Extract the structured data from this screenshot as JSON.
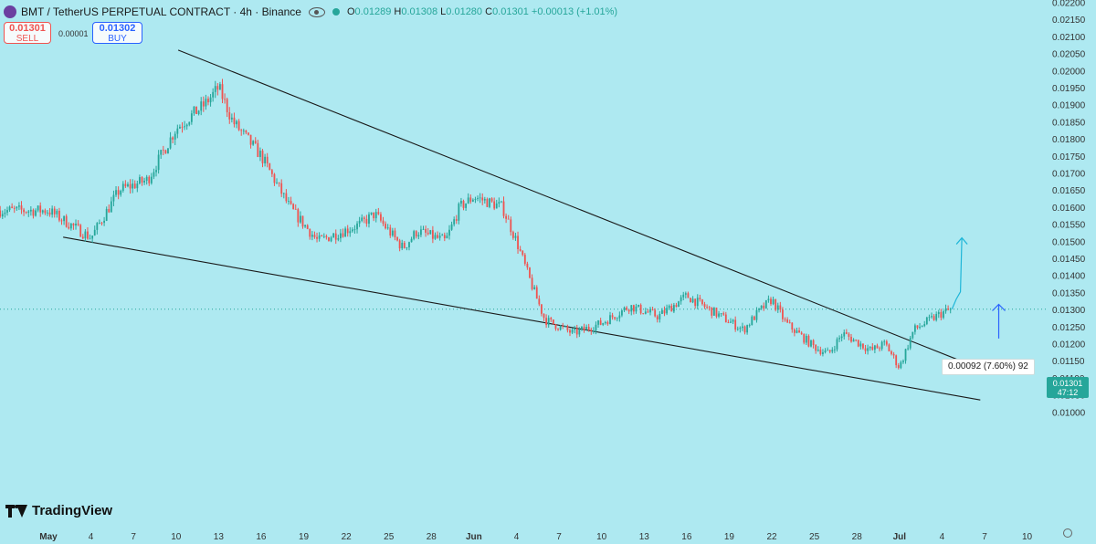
{
  "header": {
    "symbol_title": "BMT / TetherUS PERPETUAL CONTRACT · 4h · Binance",
    "ohlc": {
      "o_label": "O",
      "o_value": "0.01289",
      "h_label": "H",
      "h_value": "0.01308",
      "l_label": "L",
      "l_value": "0.01280",
      "c_label": "C",
      "c_value": "0.01301",
      "change": "+0.00013 (+1.01%)"
    }
  },
  "trade": {
    "sell_price": "0.01301",
    "sell_label": "SELL",
    "spread": "0.00001",
    "buy_price": "0.01302",
    "buy_label": "BUY"
  },
  "branding": {
    "name": "TradingView"
  },
  "last_price": {
    "value": "0.01301",
    "countdown": "47:12"
  },
  "measure_label": "0.00092 (7.60%) 92",
  "colors": {
    "background": "#aee9f1",
    "up": "#26a69a",
    "down": "#ef5350",
    "projection": "#1fb6d8",
    "arrow": "#2962ff"
  },
  "chart_data": {
    "type": "candlestick",
    "x_tick_labels": [
      "May",
      "4",
      "7",
      "10",
      "13",
      "16",
      "19",
      "22",
      "25",
      "28",
      "Jun",
      "4",
      "7",
      "10",
      "13",
      "16",
      "19",
      "22",
      "25",
      "28",
      "Jul",
      "4",
      "7",
      "10"
    ],
    "y_tick_labels": [
      "0.02200",
      "0.02150",
      "0.02100",
      "0.02050",
      "0.02000",
      "0.01950",
      "0.01900",
      "0.01850",
      "0.01800",
      "0.01750",
      "0.01700",
      "0.01650",
      "0.01600",
      "0.01550",
      "0.01500",
      "0.01450",
      "0.01400",
      "0.01350",
      "0.01300",
      "0.01250",
      "0.01200",
      "0.01150",
      "0.01100",
      "0.01050",
      "0.01000"
    ],
    "ylim": [
      0.00985,
      0.0221
    ],
    "price_path": [
      {
        "day": 0,
        "price": 0.0159
      },
      {
        "day": 3,
        "price": 0.0151
      },
      {
        "day": 5,
        "price": 0.0165
      },
      {
        "day": 7,
        "price": 0.0168
      },
      {
        "day": 9,
        "price": 0.0183
      },
      {
        "day": 11,
        "price": 0.019
      },
      {
        "day": 12,
        "price": 0.0195
      },
      {
        "day": 13,
        "price": 0.0185
      },
      {
        "day": 15,
        "price": 0.0175
      },
      {
        "day": 17,
        "price": 0.016
      },
      {
        "day": 19,
        "price": 0.015
      },
      {
        "day": 22,
        "price": 0.0155
      },
      {
        "day": 23,
        "price": 0.0158
      },
      {
        "day": 25,
        "price": 0.0148
      },
      {
        "day": 26,
        "price": 0.0153
      },
      {
        "day": 28,
        "price": 0.015
      },
      {
        "day": 29,
        "price": 0.016
      },
      {
        "day": 30,
        "price": 0.0163
      },
      {
        "day": 32,
        "price": 0.016
      },
      {
        "day": 33,
        "price": 0.015
      },
      {
        "day": 34,
        "price": 0.0138
      },
      {
        "day": 35,
        "price": 0.0127
      },
      {
        "day": 37,
        "price": 0.0123
      },
      {
        "day": 39,
        "price": 0.0126
      },
      {
        "day": 41,
        "price": 0.0131
      },
      {
        "day": 43,
        "price": 0.0128
      },
      {
        "day": 45,
        "price": 0.0134
      },
      {
        "day": 47,
        "price": 0.0129
      },
      {
        "day": 49,
        "price": 0.0124
      },
      {
        "day": 50,
        "price": 0.0129
      },
      {
        "day": 51,
        "price": 0.0133
      },
      {
        "day": 52,
        "price": 0.0126
      },
      {
        "day": 54,
        "price": 0.0119
      },
      {
        "day": 55,
        "price": 0.0117
      },
      {
        "day": 56,
        "price": 0.0123
      },
      {
        "day": 58,
        "price": 0.0118
      },
      {
        "day": 59,
        "price": 0.012
      },
      {
        "day": 60,
        "price": 0.0113
      },
      {
        "day": 61,
        "price": 0.0124
      },
      {
        "day": 63,
        "price": 0.0129
      },
      {
        "day": 63.7,
        "price": 0.01301
      }
    ],
    "trendlines": [
      {
        "name": "upper",
        "points": [
          {
            "day": 9.15,
            "price": 0.0206
          },
          {
            "day": 65.7,
            "price": 0.01127
          }
        ]
      },
      {
        "name": "lower",
        "points": [
          {
            "day": 1.04,
            "price": 0.01512
          },
          {
            "day": 65.7,
            "price": 0.01035
          }
        ]
      }
    ],
    "projection": [
      {
        "day": 63.7,
        "price": 0.01301
      },
      {
        "day": 64.0,
        "price": 0.0133
      },
      {
        "day": 64.3,
        "price": 0.01352
      },
      {
        "day": 64.4,
        "price": 0.0151
      }
    ],
    "arrow": {
      "day": 67.0,
      "from": 0.01215,
      "to": 0.01315
    },
    "last_price": 0.01301
  }
}
